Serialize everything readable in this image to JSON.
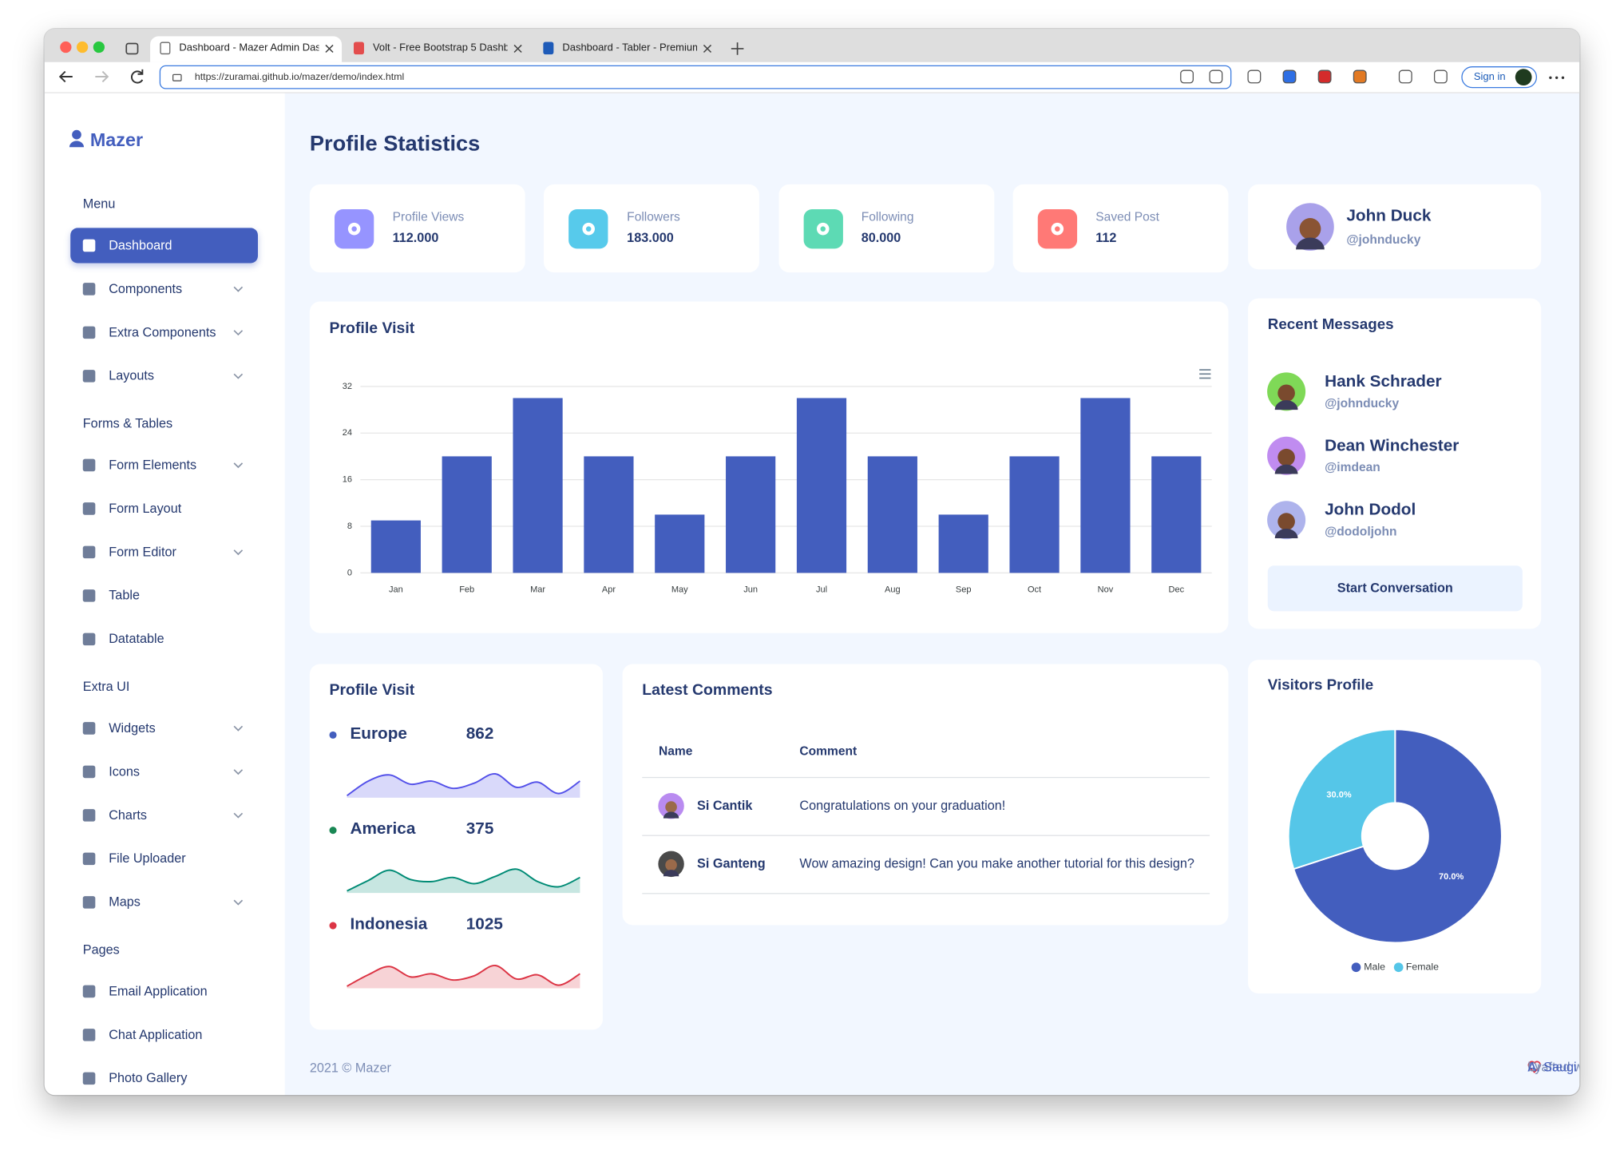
{
  "browser": {
    "tabs": [
      {
        "title": "Dashboard - Mazer Admin Das",
        "active": true
      },
      {
        "title": "Volt - Free Bootstrap 5 Dashb",
        "active": false
      },
      {
        "title": "Dashboard - Tabler - Premium",
        "active": false
      }
    ],
    "url": "https://zuramai.github.io/mazer/demo/index.html",
    "sign_in": "Sign in"
  },
  "sidebar": {
    "brand": "Mazer",
    "sections": [
      {
        "title": "Menu",
        "items": [
          {
            "label": "Dashboard",
            "active": true,
            "submenu": false
          },
          {
            "label": "Components",
            "active": false,
            "submenu": true
          },
          {
            "label": "Extra Components",
            "active": false,
            "submenu": true
          },
          {
            "label": "Layouts",
            "active": false,
            "submenu": true
          }
        ]
      },
      {
        "title": "Forms & Tables",
        "items": [
          {
            "label": "Form Elements",
            "active": false,
            "submenu": true
          },
          {
            "label": "Form Layout",
            "active": false,
            "submenu": false
          },
          {
            "label": "Form Editor",
            "active": false,
            "submenu": true
          },
          {
            "label": "Table",
            "active": false,
            "submenu": false
          },
          {
            "label": "Datatable",
            "active": false,
            "submenu": false
          }
        ]
      },
      {
        "title": "Extra UI",
        "items": [
          {
            "label": "Widgets",
            "active": false,
            "submenu": true
          },
          {
            "label": "Icons",
            "active": false,
            "submenu": true
          },
          {
            "label": "Charts",
            "active": false,
            "submenu": true
          },
          {
            "label": "File Uploader",
            "active": false,
            "submenu": false
          },
          {
            "label": "Maps",
            "active": false,
            "submenu": true
          }
        ]
      },
      {
        "title": "Pages",
        "items": [
          {
            "label": "Email Application",
            "active": false,
            "submenu": false
          },
          {
            "label": "Chat Application",
            "active": false,
            "submenu": false
          },
          {
            "label": "Photo Gallery",
            "active": false,
            "submenu": false
          }
        ]
      }
    ]
  },
  "page_title": "Profile Statistics",
  "stats": [
    {
      "label": "Profile Views",
      "value": "112.000",
      "color": "#9694ff"
    },
    {
      "label": "Followers",
      "value": "183.000",
      "color": "#57caeb"
    },
    {
      "label": "Following",
      "value": "80.000",
      "color": "#5ddab4"
    },
    {
      "label": "Saved Post",
      "value": "112",
      "color": "#ff7976"
    }
  ],
  "profile": {
    "name": "John Duck",
    "handle": "@johnducky",
    "avatar_color": "#a9a1ea"
  },
  "chart_data": [
    {
      "type": "bar",
      "title": "Profile Visit",
      "categories": [
        "Jan",
        "Feb",
        "Mar",
        "Apr",
        "May",
        "Jun",
        "Jul",
        "Aug",
        "Sep",
        "Oct",
        "Nov",
        "Dec"
      ],
      "values": [
        9,
        20,
        30,
        20,
        10,
        20,
        30,
        20,
        10,
        20,
        30,
        20
      ],
      "color": "#435ebe",
      "ylim": [
        0,
        32
      ],
      "yticks": [
        0,
        8,
        16,
        24,
        32
      ],
      "grid": true
    },
    {
      "type": "pie",
      "title": "Visitors Profile",
      "categories": [
        "Male",
        "Female"
      ],
      "values": [
        70,
        30
      ],
      "value_labels": [
        "70.0%",
        "30.0%"
      ],
      "colors": [
        "#435ebe",
        "#55c6e8"
      ],
      "donut": true,
      "legend": "bottom"
    }
  ],
  "recent_messages": {
    "title": "Recent Messages",
    "messages": [
      {
        "name": "Hank Schrader",
        "handle": "@johnducky",
        "avatar_color": "#7fd957"
      },
      {
        "name": "Dean Winchester",
        "handle": "@imdean",
        "avatar_color": "#c08cf0"
      },
      {
        "name": "John Dodol",
        "handle": "@dodoljohn",
        "avatar_color": "#aeb3ec"
      }
    ],
    "button": "Start Conversation"
  },
  "region_visits": {
    "title": "Profile Visit",
    "regions": [
      {
        "name": "Europe",
        "value": 862,
        "color": "#435ebe",
        "line_color": "#5350e9",
        "trend": [
          2,
          16,
          22,
          13,
          16,
          9,
          14,
          23,
          10,
          15,
          4,
          16
        ]
      },
      {
        "name": "America",
        "value": 375,
        "color": "#198754",
        "line_color": "#008b75",
        "trend": [
          2,
          12,
          22,
          13,
          11,
          15,
          9,
          16,
          23,
          11,
          6,
          15
        ]
      },
      {
        "name": "Indonesia",
        "value": 1025,
        "color": "#dc3545",
        "line_color": "#dc3545",
        "trend": [
          2,
          13,
          21,
          11,
          14,
          8,
          12,
          22,
          9,
          13,
          3,
          14
        ]
      }
    ]
  },
  "comments": {
    "title": "Latest Comments",
    "columns": [
      "Name",
      "Comment"
    ],
    "rows": [
      {
        "name": "Si Cantik",
        "comment": "Congratulations on your graduation!",
        "avatar_color": "#b98bf0"
      },
      {
        "name": "Si Ganteng",
        "comment": "Wow amazing design! Can you make another tutorial for this design?",
        "avatar_color": "#4a4a4a"
      }
    ]
  },
  "footer": {
    "copyright": "2021 © Mazer",
    "crafted": "Crafted with",
    "by": "by",
    "author": "A. Saugi"
  }
}
